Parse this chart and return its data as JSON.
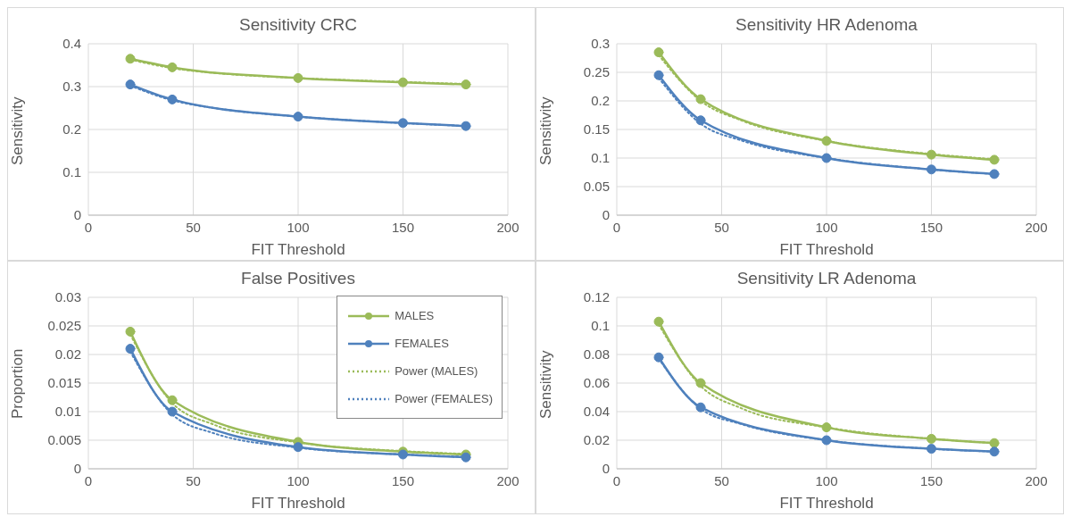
{
  "chart_data": [
    {
      "type": "line",
      "title": "Sensitivity CRC",
      "xlabel": "FIT Threshold",
      "ylabel": "Sensitivity",
      "xlim": [
        0,
        200
      ],
      "xticks": [
        0,
        50,
        100,
        150,
        200
      ],
      "ylim": [
        0,
        0.4
      ],
      "yticks": [
        0,
        0.1,
        0.2,
        0.3,
        0.4
      ],
      "grid": true,
      "series": [
        {
          "color": "#9bbb59",
          "marker": "circle",
          "line_style": "solid",
          "x": [
            20,
            40,
            100,
            150,
            180
          ],
          "values": [
            0.365,
            0.345,
            0.32,
            0.31,
            0.305
          ]
        },
        {
          "color": "#4f81bd",
          "marker": "circle",
          "line_style": "solid",
          "x": [
            20,
            40,
            100,
            150,
            180
          ],
          "values": [
            0.305,
            0.27,
            0.23,
            0.215,
            0.208
          ]
        },
        {
          "color": "#9bbb59",
          "marker": "none",
          "line_style": "dotted",
          "x": [
            20,
            40,
            60,
            100,
            150,
            180
          ],
          "values": [
            0.363,
            0.343,
            0.332,
            0.32,
            0.311,
            0.306
          ]
        },
        {
          "color": "#4f81bd",
          "marker": "none",
          "line_style": "dotted",
          "x": [
            20,
            40,
            60,
            100,
            150,
            180
          ],
          "values": [
            0.302,
            0.268,
            0.25,
            0.23,
            0.215,
            0.208
          ]
        }
      ]
    },
    {
      "type": "line",
      "title": "Sensitivity HR Adenoma",
      "xlabel": "FIT Threshold",
      "ylabel": "Sensitivity",
      "xlim": [
        0,
        200
      ],
      "xticks": [
        0,
        50,
        100,
        150,
        200
      ],
      "ylim": [
        0,
        0.3
      ],
      "yticks": [
        0,
        0.05,
        0.1,
        0.15,
        0.2,
        0.25,
        0.3
      ],
      "grid": true,
      "series": [
        {
          "color": "#9bbb59",
          "marker": "circle",
          "line_style": "solid",
          "x": [
            20,
            40,
            100,
            150,
            180
          ],
          "values": [
            0.285,
            0.203,
            0.13,
            0.106,
            0.097
          ]
        },
        {
          "color": "#4f81bd",
          "marker": "circle",
          "line_style": "solid",
          "x": [
            20,
            40,
            100,
            150,
            180
          ],
          "values": [
            0.245,
            0.166,
            0.1,
            0.08,
            0.072
          ]
        },
        {
          "color": "#9bbb59",
          "marker": "none",
          "line_style": "dotted",
          "x": [
            20,
            40,
            60,
            100,
            150,
            180
          ],
          "values": [
            0.28,
            0.2,
            0.165,
            0.13,
            0.107,
            0.098
          ]
        },
        {
          "color": "#4f81bd",
          "marker": "none",
          "line_style": "dotted",
          "x": [
            20,
            40,
            60,
            100,
            150,
            180
          ],
          "values": [
            0.24,
            0.16,
            0.13,
            0.1,
            0.08,
            0.072
          ]
        }
      ]
    },
    {
      "type": "line",
      "title": "False Positives",
      "xlabel": "FIT Threshold",
      "ylabel": "Proportion",
      "xlim": [
        0,
        200
      ],
      "xticks": [
        0,
        50,
        100,
        150,
        200
      ],
      "ylim": [
        0,
        0.03
      ],
      "yticks": [
        0,
        0.005,
        0.01,
        0.015,
        0.02,
        0.025,
        0.03
      ],
      "grid": true,
      "legend": "top right",
      "series": [
        {
          "name": "MALES",
          "color": "#9bbb59",
          "marker": "circle",
          "line_style": "solid",
          "x": [
            20,
            40,
            100,
            150,
            180
          ],
          "values": [
            0.024,
            0.012,
            0.0047,
            0.003,
            0.0025
          ]
        },
        {
          "name": "FEMALES",
          "color": "#4f81bd",
          "marker": "circle",
          "line_style": "solid",
          "x": [
            20,
            40,
            100,
            150,
            180
          ],
          "values": [
            0.021,
            0.01,
            0.0038,
            0.0025,
            0.002
          ]
        },
        {
          "name": "Power (MALES)",
          "color": "#9bbb59",
          "marker": "none",
          "line_style": "dotted",
          "x": [
            20,
            40,
            60,
            100,
            150,
            180
          ],
          "values": [
            0.0235,
            0.0115,
            0.0077,
            0.0046,
            0.0031,
            0.0026
          ]
        },
        {
          "name": "Power (FEMALES)",
          "color": "#4f81bd",
          "marker": "none",
          "line_style": "dotted",
          "x": [
            20,
            40,
            60,
            100,
            150,
            180
          ],
          "values": [
            0.0205,
            0.0095,
            0.0062,
            0.0037,
            0.0025,
            0.0021
          ]
        }
      ]
    },
    {
      "type": "line",
      "title": "Sensitivity LR Adenoma",
      "xlabel": "FIT Threshold",
      "ylabel": "Sensitivity",
      "xlim": [
        0,
        200
      ],
      "xticks": [
        0,
        50,
        100,
        150,
        200
      ],
      "ylim": [
        0,
        0.12
      ],
      "yticks": [
        0,
        0.02,
        0.04,
        0.06,
        0.08,
        0.1,
        0.12
      ],
      "grid": true,
      "series": [
        {
          "color": "#9bbb59",
          "marker": "circle",
          "line_style": "solid",
          "x": [
            20,
            40,
            100,
            150,
            180
          ],
          "values": [
            0.103,
            0.06,
            0.029,
            0.021,
            0.018
          ]
        },
        {
          "color": "#4f81bd",
          "marker": "circle",
          "line_style": "solid",
          "x": [
            20,
            40,
            100,
            150,
            180
          ],
          "values": [
            0.078,
            0.043,
            0.02,
            0.014,
            0.012
          ]
        },
        {
          "color": "#9bbb59",
          "marker": "none",
          "line_style": "dotted",
          "x": [
            20,
            40,
            60,
            100,
            150,
            180
          ],
          "values": [
            0.101,
            0.058,
            0.042,
            0.029,
            0.021,
            0.018
          ]
        },
        {
          "color": "#4f81bd",
          "marker": "none",
          "line_style": "dotted",
          "x": [
            20,
            40,
            60,
            100,
            150,
            180
          ],
          "values": [
            0.077,
            0.042,
            0.031,
            0.02,
            0.014,
            0.012
          ]
        }
      ]
    }
  ]
}
